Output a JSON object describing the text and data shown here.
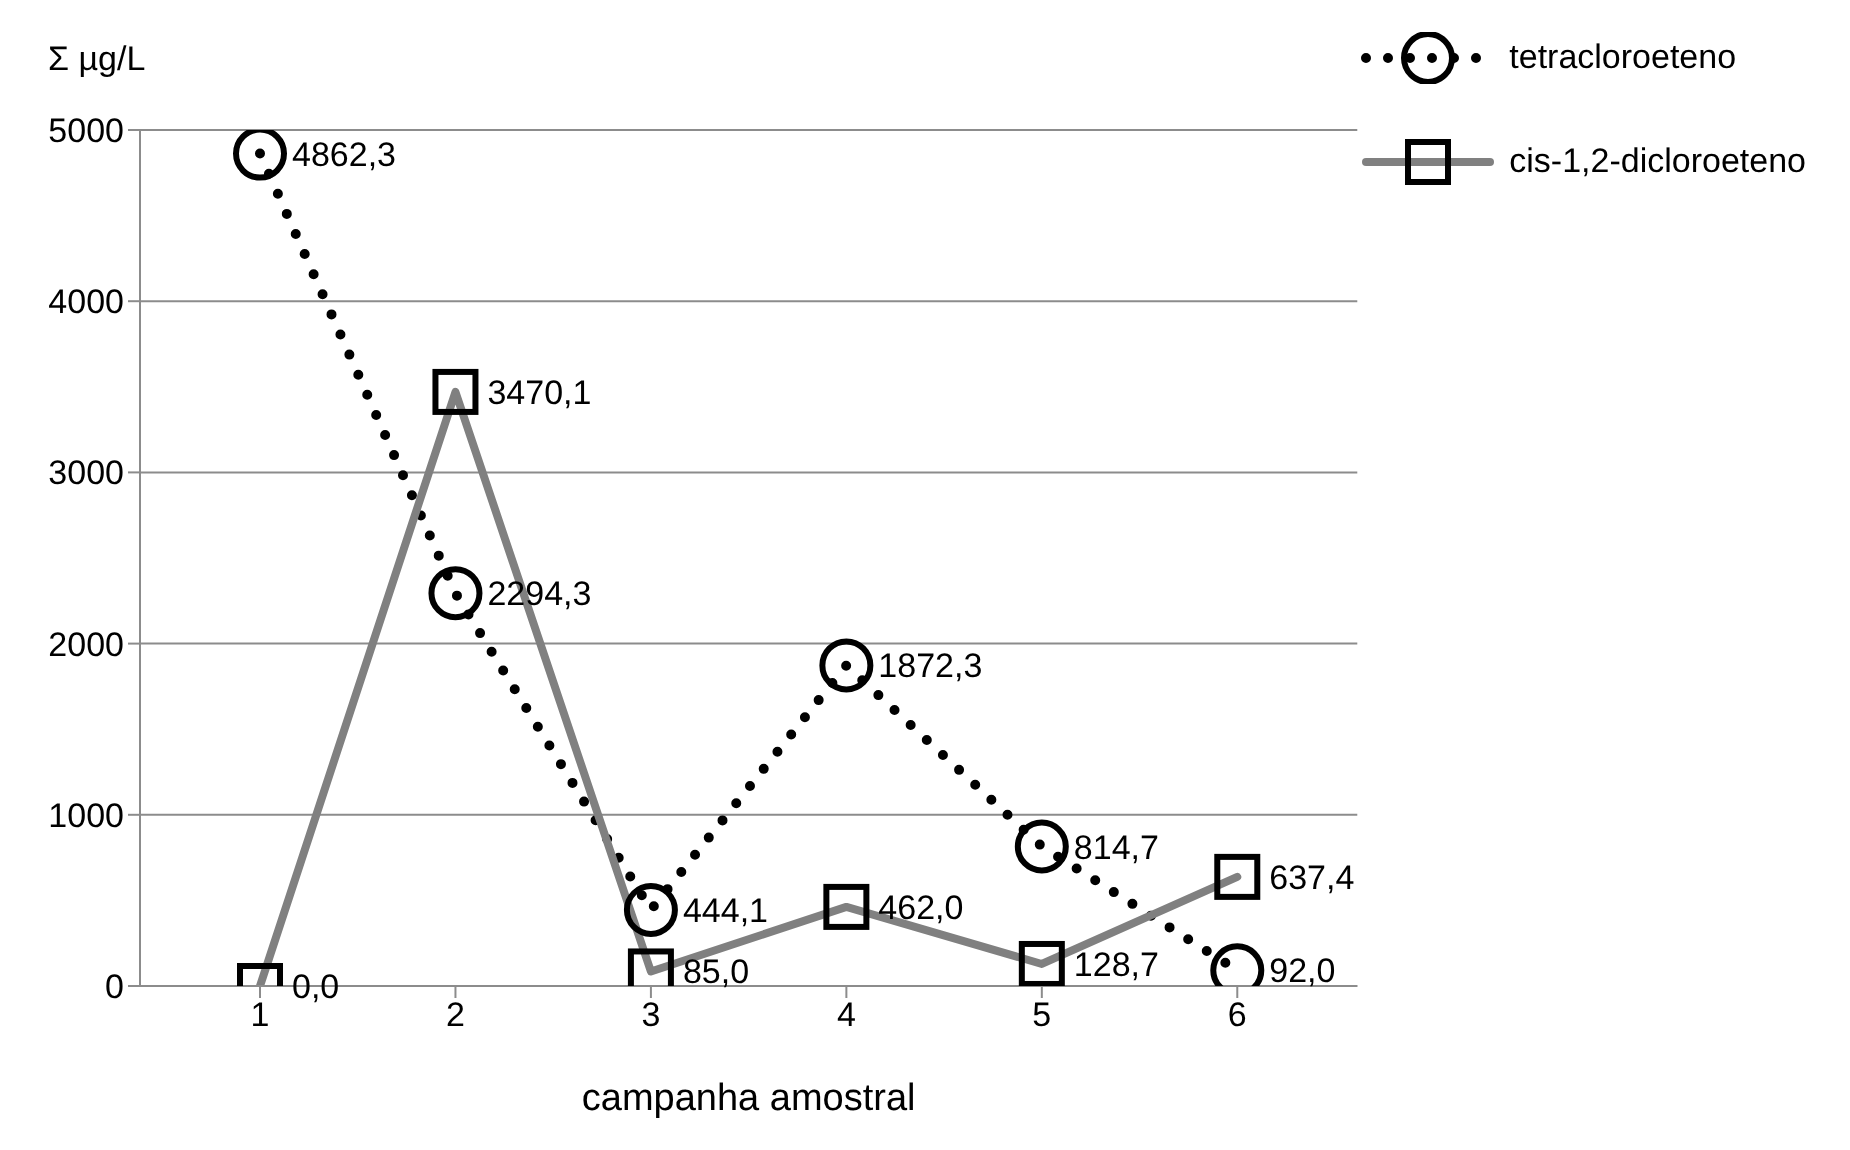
{
  "chart_data": {
    "type": "line",
    "ylabel": "Σ µg/L",
    "xlabel": "campanha amostral",
    "categories": [
      "1",
      "2",
      "3",
      "4",
      "5",
      "6"
    ],
    "ylim": [
      0,
      5000
    ],
    "yticks": [
      0,
      1000,
      2000,
      3000,
      4000,
      5000
    ],
    "grid": "y",
    "legend": "top right",
    "series": [
      {
        "name": "tetracloroeteno",
        "color": "#000000",
        "marker": "circle",
        "line_style": "dotted",
        "values": [
          4862.3,
          2294.3,
          444.1,
          1872.3,
          814.7,
          92.0
        ],
        "value_labels": [
          "4862,3",
          "2294,3",
          "444,1",
          "1872,3",
          "814,7",
          "92,0"
        ]
      },
      {
        "name": "cis-1,2-dicloroeteno",
        "color": "#808080",
        "marker": "square",
        "line_style": "solid",
        "values": [
          0.0,
          3470.1,
          85.0,
          462.0,
          128.7,
          637.4
        ],
        "value_labels": [
          "0,0",
          "3470,1",
          "85,0",
          "462,0",
          "128,7",
          "637,4"
        ]
      }
    ]
  }
}
